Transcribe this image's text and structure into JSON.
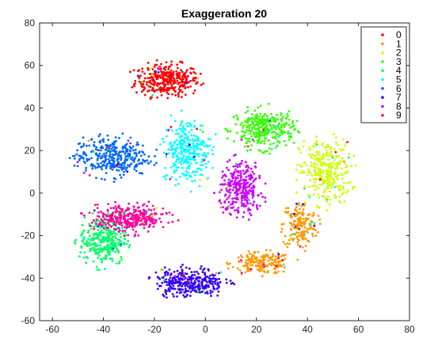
{
  "chart_data": {
    "type": "scatter",
    "title": "Exaggeration 20",
    "xlabel": "",
    "ylabel": "",
    "xlim": [
      -65,
      80
    ],
    "ylim": [
      -60,
      80
    ],
    "xticks": [
      -60,
      -40,
      -20,
      0,
      20,
      40,
      60,
      80
    ],
    "yticks": [
      -60,
      -40,
      -20,
      0,
      20,
      40,
      60,
      80
    ],
    "grid": false,
    "legend_position": "top-right",
    "series": [
      {
        "name": "0",
        "color": "#ff0000",
        "clusters": [
          {
            "cx": -15,
            "cy": 53,
            "rx": 15,
            "ry": 9,
            "n": 340
          }
        ]
      },
      {
        "name": "1",
        "color": "#ff9900",
        "clusters": [
          {
            "cx": 22,
            "cy": -33,
            "rx": 14,
            "ry": 6,
            "n": 180
          },
          {
            "cx": 37,
            "cy": -15,
            "rx": 8,
            "ry": 13,
            "n": 180
          }
        ]
      },
      {
        "name": "2",
        "color": "#ccff00",
        "clusters": [
          {
            "cx": 47,
            "cy": 10,
            "rx": 12,
            "ry": 18,
            "n": 300
          }
        ]
      },
      {
        "name": "3",
        "color": "#33ff00",
        "clusters": [
          {
            "cx": 23,
            "cy": 30,
            "rx": 14,
            "ry": 11,
            "n": 320
          }
        ]
      },
      {
        "name": "4",
        "color": "#00ff66",
        "clusters": [
          {
            "cx": -40,
            "cy": -22,
            "rx": 11,
            "ry": 14,
            "n": 300
          }
        ]
      },
      {
        "name": "5",
        "color": "#00ffff",
        "clusters": [
          {
            "cx": -7,
            "cy": 20,
            "rx": 11,
            "ry": 18,
            "n": 300
          }
        ]
      },
      {
        "name": "6",
        "color": "#0066ff",
        "clusters": [
          {
            "cx": -37,
            "cy": 17,
            "rx": 17,
            "ry": 11,
            "n": 340
          }
        ]
      },
      {
        "name": "7",
        "color": "#3300ff",
        "clusters": [
          {
            "cx": -6,
            "cy": -42,
            "rx": 16,
            "ry": 8,
            "n": 320
          }
        ]
      },
      {
        "name": "8",
        "color": "#cc00ff",
        "clusters": [
          {
            "cx": 14,
            "cy": 2,
            "rx": 10,
            "ry": 15,
            "n": 300
          }
        ]
      },
      {
        "name": "9",
        "color": "#ff0099",
        "clusters": [
          {
            "cx": -30,
            "cy": -12,
            "rx": 18,
            "ry": 8,
            "n": 320
          }
        ]
      }
    ]
  }
}
